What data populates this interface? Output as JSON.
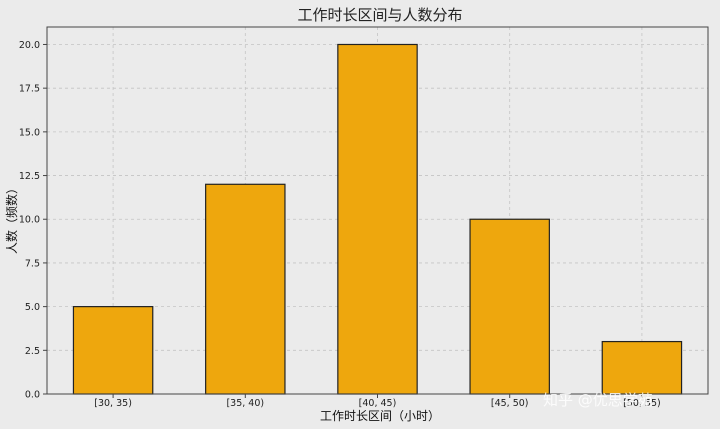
{
  "chart_data": {
    "type": "bar",
    "title": "工作时长区间与人数分布",
    "xlabel": "工作时长区间（小时）",
    "ylabel": "人数（频数）",
    "categories": [
      "[30, 35)",
      "[35, 40)",
      "[40, 45)",
      "[45, 50)",
      "[50, 55)"
    ],
    "values": [
      5,
      12,
      20,
      10,
      3
    ],
    "ylim": [
      0,
      21
    ],
    "yticks": [
      "0.0",
      "2.5",
      "5.0",
      "7.5",
      "10.0",
      "12.5",
      "15.0",
      "17.5",
      "20.0"
    ],
    "grid": true,
    "bar_color": "#eea70d",
    "edge_color": "#222222"
  },
  "watermark": {
    "text": "知乎 @优思学苑"
  }
}
